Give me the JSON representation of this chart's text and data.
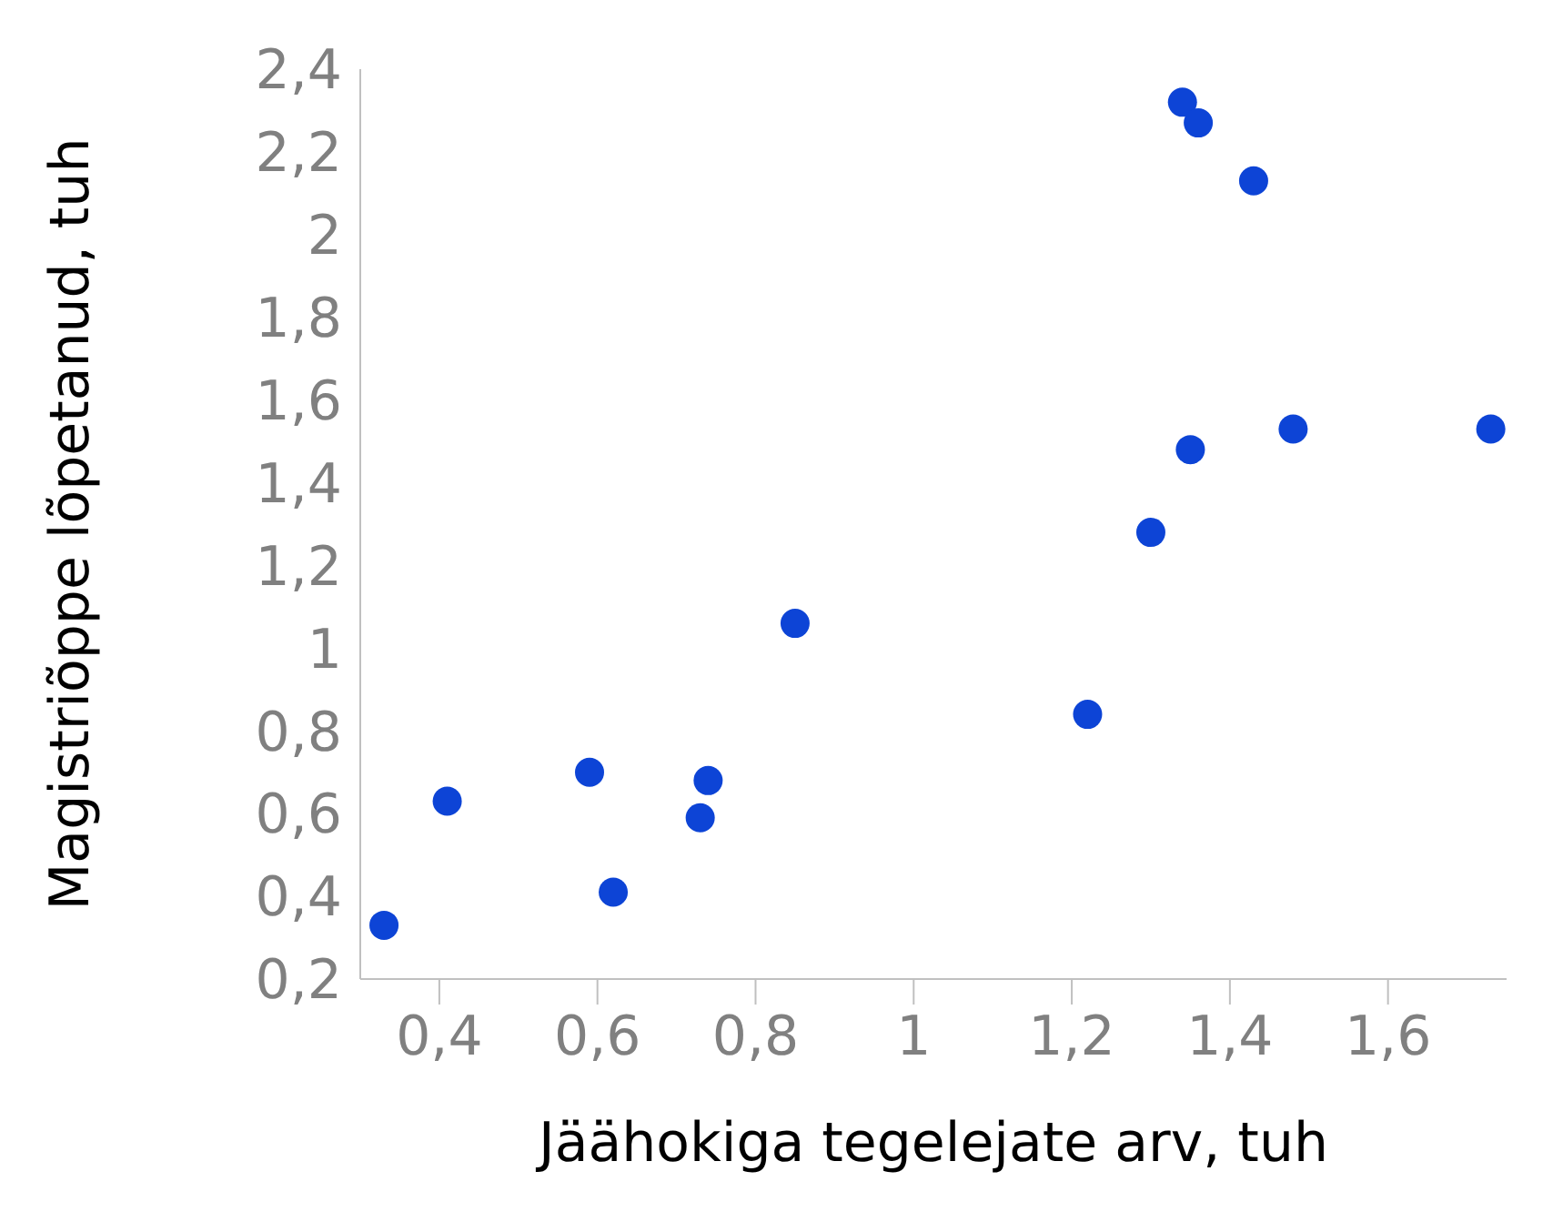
{
  "chart_data": {
    "type": "scatter",
    "xlabel": "Jäähokiga tegelejate arv, tuh",
    "ylabel": "Magistriõppe lõpetanud, tuh",
    "x": [
      0.33,
      0.41,
      0.59,
      0.62,
      0.73,
      0.74,
      0.85,
      1.22,
      1.3,
      1.35,
      1.48,
      1.73,
      1.34,
      1.36,
      1.43
    ],
    "values": [
      0.33,
      0.63,
      0.7,
      0.41,
      0.59,
      0.68,
      1.06,
      0.84,
      1.28,
      1.48,
      1.53,
      1.53,
      2.32,
      2.27,
      2.13
    ],
    "color": "#0d44d6",
    "marker": "circle",
    "grid": false,
    "legend": false,
    "xlim": [
      0.3,
      1.75
    ],
    "xticks": [
      {
        "value": 0.4,
        "label": "0,4"
      },
      {
        "value": 0.6,
        "label": "0,6"
      },
      {
        "value": 0.8,
        "label": "0,8"
      },
      {
        "value": 1,
        "label": "1"
      },
      {
        "value": 1.2,
        "label": "1,2"
      },
      {
        "value": 1.4,
        "label": "1,4"
      },
      {
        "value": 1.6,
        "label": "1,6"
      }
    ],
    "ylim": [
      0.2,
      2.4
    ],
    "yticks": [
      {
        "value": 0.2,
        "label": "0,2"
      },
      {
        "value": 0.4,
        "label": "0,4"
      },
      {
        "value": 0.6,
        "label": "0,6"
      },
      {
        "value": 0.8,
        "label": "0,8"
      },
      {
        "value": 1,
        "label": "1"
      },
      {
        "value": 1.2,
        "label": "1,2"
      },
      {
        "value": 1.4,
        "label": "1,4"
      },
      {
        "value": 1.6,
        "label": "1,6"
      },
      {
        "value": 1.8,
        "label": "1,8"
      },
      {
        "value": 2,
        "label": "2"
      },
      {
        "value": 2.2,
        "label": "2,2"
      },
      {
        "value": 2.4,
        "label": "2,4"
      }
    ]
  }
}
